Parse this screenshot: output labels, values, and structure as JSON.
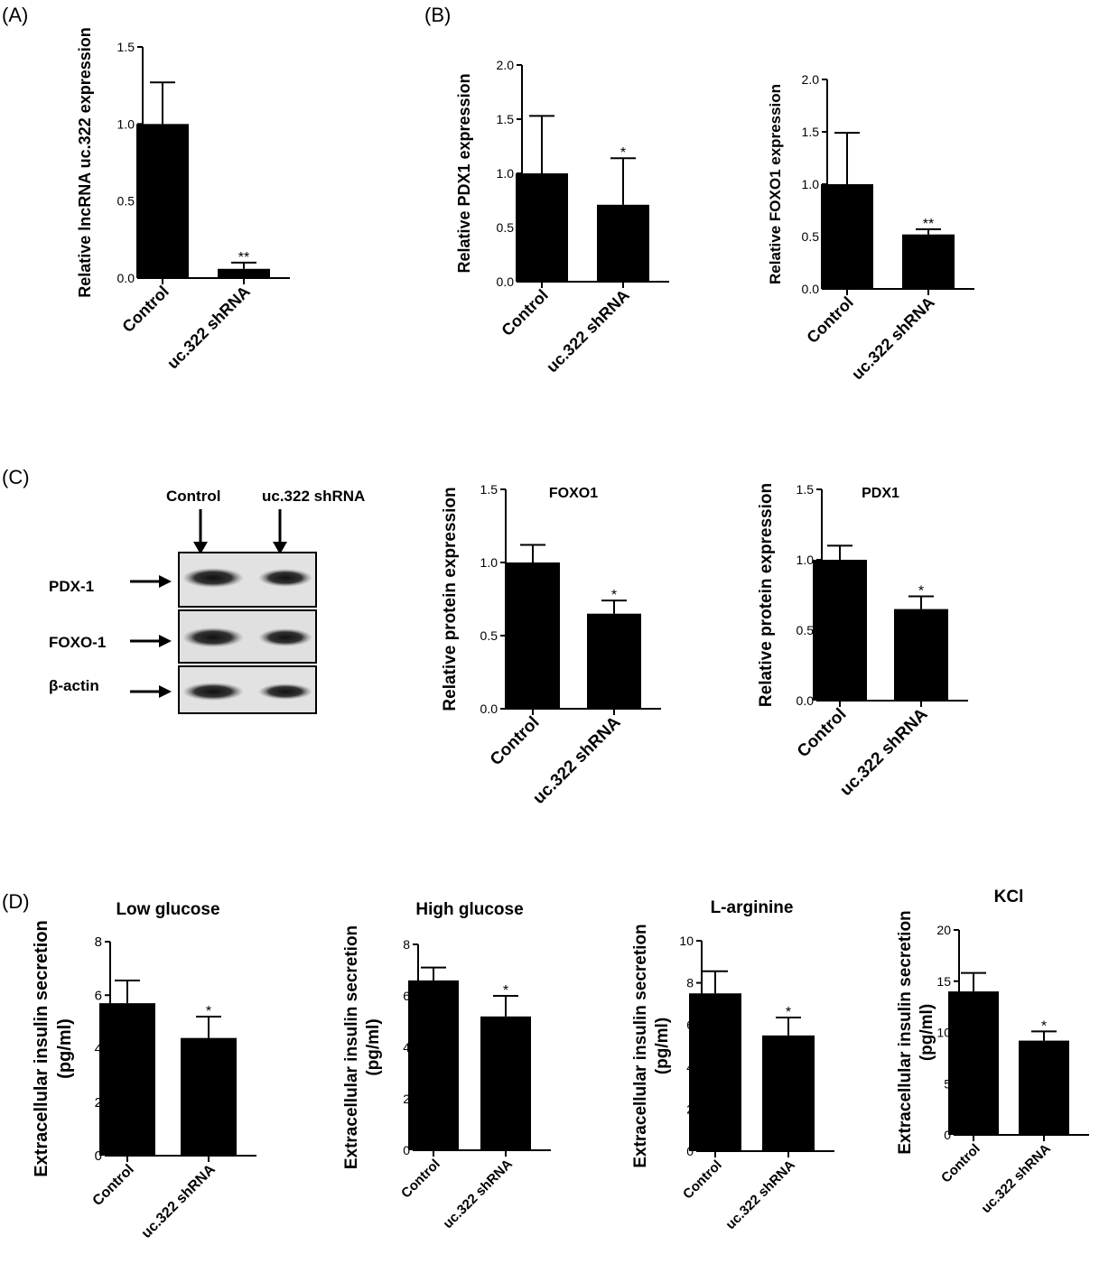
{
  "panel_labels": {
    "A": "(A)",
    "B": "(B)",
    "C": "(C)",
    "D": "(D)"
  },
  "western_blot": {
    "lane_labels": [
      "Control",
      "uc.322 shRNA"
    ],
    "row_labels": [
      "PDX-1",
      "FOXO-1",
      "β-actin"
    ]
  },
  "chart_data": [
    {
      "id": "A1",
      "type": "bar",
      "categories": [
        "Control",
        "uc.322 shRNA"
      ],
      "values": [
        1.0,
        0.06
      ],
      "errors": [
        0.27,
        0.04
      ],
      "annotations": [
        "",
        "**"
      ],
      "title": "",
      "xlabel": "",
      "ylabel": "Relative  lncRNA uc.322 expression",
      "ylim": [
        0,
        1.5
      ],
      "yticks": [
        "0.0",
        "0.5",
        "1.0",
        "1.5"
      ],
      "grid": false
    },
    {
      "id": "B1",
      "type": "bar",
      "categories": [
        "Control",
        "uc.322 shRNA"
      ],
      "values": [
        1.0,
        0.71
      ],
      "errors": [
        0.53,
        0.43
      ],
      "annotations": [
        "",
        "*"
      ],
      "title": "",
      "xlabel": "",
      "ylabel": "Relative  PDX1 expression",
      "ylim": [
        0,
        2.0
      ],
      "yticks": [
        "0.0",
        "0.5",
        "1.0",
        "1.5",
        "2.0"
      ],
      "grid": false
    },
    {
      "id": "B2",
      "type": "bar",
      "categories": [
        "Control",
        "uc.322 shRNA"
      ],
      "values": [
        1.0,
        0.52
      ],
      "errors": [
        0.49,
        0.05
      ],
      "annotations": [
        "",
        "**"
      ],
      "title": "",
      "xlabel": "",
      "ylabel": "Relative FOXO1 expression",
      "ylim": [
        0,
        2.0
      ],
      "yticks": [
        "0.0",
        "0.5",
        "1.0",
        "1.5",
        "2.0"
      ],
      "grid": false
    },
    {
      "id": "C1",
      "type": "bar",
      "categories": [
        "Control",
        "uc.322 shRNA"
      ],
      "values": [
        1.0,
        0.65
      ],
      "errors": [
        0.12,
        0.09
      ],
      "annotations": [
        "",
        "*"
      ],
      "title": "FOXO1",
      "xlabel": "",
      "ylabel": "Relative  protein expression",
      "ylim": [
        0,
        1.5
      ],
      "yticks": [
        "0.0",
        "0.5",
        "1.0",
        "1.5"
      ],
      "grid": false
    },
    {
      "id": "C2",
      "type": "bar",
      "categories": [
        "Control",
        "uc.322 shRNA"
      ],
      "values": [
        1.0,
        0.65
      ],
      "errors": [
        0.1,
        0.09
      ],
      "annotations": [
        "",
        "*"
      ],
      "title": "PDX1",
      "xlabel": "",
      "ylabel": "Relative  protein expression",
      "ylim": [
        0,
        1.5
      ],
      "yticks": [
        "0.0",
        "0.5",
        "1.0",
        "1.5"
      ],
      "grid": false
    },
    {
      "id": "D1",
      "type": "bar",
      "categories": [
        "Control",
        "uc.322 shRNA"
      ],
      "values": [
        5.7,
        4.4
      ],
      "errors": [
        0.85,
        0.8
      ],
      "annotations": [
        "",
        "*"
      ],
      "title": "Low glucose",
      "xlabel": "",
      "ylabel": "Extracellular insulin secretion",
      "ylabel2": "(pg/ml)",
      "ylim": [
        0,
        8
      ],
      "yticks": [
        "0",
        "2",
        "4",
        "6",
        "8"
      ],
      "grid": false
    },
    {
      "id": "D2",
      "type": "bar",
      "categories": [
        "Control",
        "uc.322 shRNA"
      ],
      "values": [
        6.6,
        5.2
      ],
      "errors": [
        0.5,
        0.8
      ],
      "annotations": [
        "",
        "*"
      ],
      "title": "High glucose",
      "xlabel": "",
      "ylabel": "Extracellular insulin secretion",
      "ylabel2": "(pg/ml)",
      "ylim": [
        0,
        8
      ],
      "yticks": [
        "0",
        "2",
        "4",
        "6",
        "8"
      ],
      "grid": false
    },
    {
      "id": "D3",
      "type": "bar",
      "categories": [
        "Control",
        "uc.322 shRNA"
      ],
      "values": [
        7.5,
        5.5
      ],
      "errors": [
        1.05,
        0.85
      ],
      "annotations": [
        "",
        "*"
      ],
      "title": "L-arginine",
      "xlabel": "",
      "ylabel": "Extracellular insulin secretion",
      "ylabel2": "(pg/ml)",
      "ylim": [
        0,
        10
      ],
      "yticks": [
        "0",
        "2",
        "4",
        "6",
        "8",
        "10"
      ],
      "grid": false
    },
    {
      "id": "D4",
      "type": "bar",
      "categories": [
        "Control",
        "uc.322 shRNA"
      ],
      "values": [
        14.0,
        9.2
      ],
      "errors": [
        1.8,
        0.9
      ],
      "annotations": [
        "",
        "*"
      ],
      "title": "KCl",
      "xlabel": "",
      "ylabel": "Extracellular insulin secretion",
      "ylabel2": "(pg/ml)",
      "ylim": [
        0,
        20
      ],
      "yticks": [
        "0",
        "5",
        "10",
        "15",
        "20"
      ],
      "grid": false
    }
  ]
}
